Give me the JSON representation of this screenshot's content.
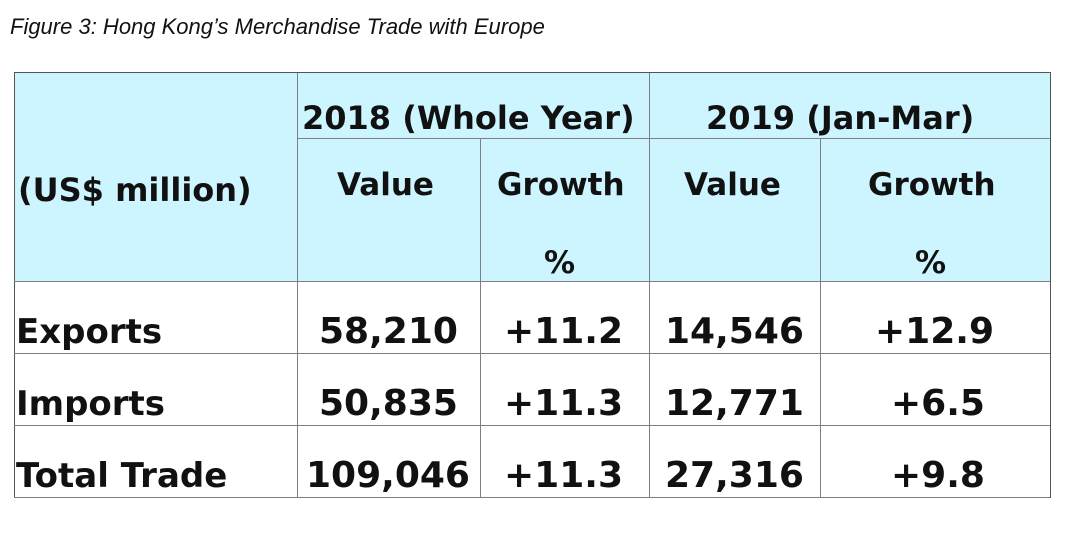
{
  "caption": "Figure 3: Hong Kong’s Merchandise Trade with Europe",
  "table": {
    "unit_label": "(US$ million)",
    "year_groups": [
      "2018 (Whole Year)",
      "2019 (Jan-Mar)"
    ],
    "value_label": "Value",
    "growth_label": "Growth",
    "percent_label": "%",
    "rows": [
      {
        "label": "Exports",
        "values": [
          "58,210",
          "+11.2",
          "14,546",
          "+12.9"
        ]
      },
      {
        "label": "Imports",
        "values": [
          "50,835",
          "+11.3",
          "12,771",
          "+6.5"
        ]
      },
      {
        "label": "Total Trade",
        "values": [
          "109,046",
          "+11.3",
          "27,316",
          "+9.8"
        ]
      }
    ]
  },
  "colors": {
    "header_background": "#ccf5ff",
    "grid": "#7f7f7f",
    "text": "#111111"
  }
}
